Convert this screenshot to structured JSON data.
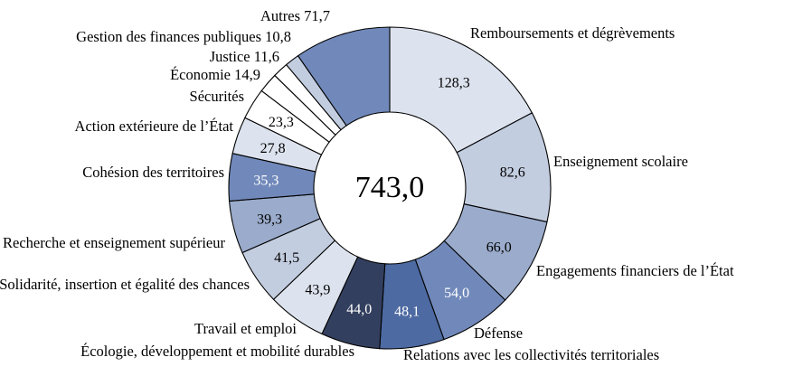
{
  "chart_data": {
    "type": "pie",
    "total_label": "743,0",
    "slices": [
      {
        "name": "Remboursements et dégrèvements",
        "value": 128.3,
        "value_label": "128,3",
        "color": "#dde3ee"
      },
      {
        "name": "Enseignement scolaire",
        "value": 82.6,
        "value_label": "82,6",
        "color": "#c3cde0"
      },
      {
        "name": "Engagements financiers de l’État",
        "value": 66.0,
        "value_label": "66,0",
        "color": "#9aabcb"
      },
      {
        "name": "Défense",
        "value": 54.0,
        "value_label": "54,0",
        "color": "#7189ba"
      },
      {
        "name": "Relations avec les collectivités territoriales",
        "value": 48.1,
        "value_label": "48,1",
        "color": "#4d6aa2"
      },
      {
        "name": "Écologie, développement et mobilité durables",
        "value": 44.0,
        "value_label": "44,0",
        "color": "#333f5e"
      },
      {
        "name": "Travail et emploi",
        "value": 43.9,
        "value_label": "43,9",
        "color": "#dde3ee"
      },
      {
        "name": "Solidarité, insertion et égalité des chances",
        "value": 41.5,
        "value_label": "41,5",
        "color": "#c3cde0"
      },
      {
        "name": "Recherche et enseignement supérieur",
        "value": 39.3,
        "value_label": "39,3",
        "color": "#9aabcb"
      },
      {
        "name": "Cohésion des territoires",
        "value": 35.3,
        "value_label": "35,3",
        "color": "#7189ba"
      },
      {
        "name": "Action extérieure de l’État",
        "value": 27.8,
        "value_label": "27,8",
        "color": "#dde3ee"
      },
      {
        "name": "Sécurités",
        "value": 23.3,
        "value_label": "23,3",
        "color": "#ffffff"
      },
      {
        "name": "Économie",
        "value": 14.9,
        "value_label": "14,9",
        "color": "#ffffff"
      },
      {
        "name": "Justice",
        "value": 11.6,
        "value_label": "11,6",
        "color": "#ffffff"
      },
      {
        "name": "Gestion des finances publiques",
        "value": 10.8,
        "value_label": "10,8",
        "color": "#c3cde0"
      },
      {
        "name": "Autres",
        "value": 71.7,
        "value_label": "71,7",
        "color": "#7189ba"
      }
    ]
  }
}
